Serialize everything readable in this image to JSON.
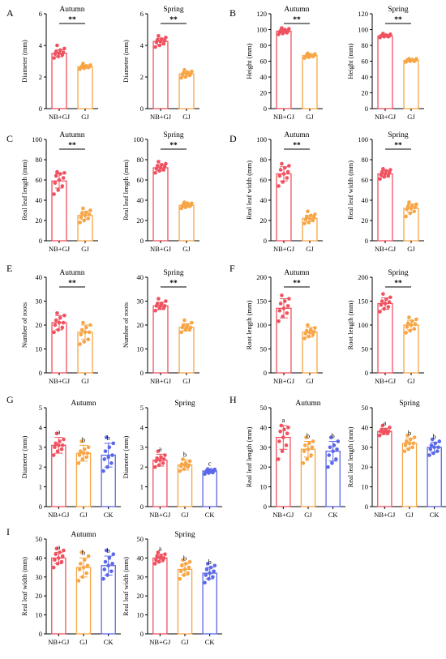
{
  "colors": {
    "NB+GJ": "#f0515f",
    "GJ": "#f7a545",
    "CK": "#5b68e8",
    "axis": "#000000"
  },
  "chart_data": [
    {
      "panel": "A",
      "type": "bar",
      "title": "Autumn",
      "ylabel": "Diameter (mm)",
      "categories": [
        "NB+GJ",
        "GJ"
      ],
      "values": [
        3.5,
        2.65
      ],
      "errors": [
        0.22,
        0.1
      ],
      "yticks": [
        0,
        2,
        4,
        6
      ],
      "ylim": [
        0,
        6
      ],
      "annotation": "**",
      "points": [
        [
          3.2,
          3.3,
          3.4,
          3.45,
          3.5,
          3.55,
          3.6,
          3.7,
          3.8,
          4.0
        ],
        [
          2.5,
          2.55,
          2.6,
          2.6,
          2.65,
          2.65,
          2.7,
          2.7,
          2.75,
          2.85
        ]
      ]
    },
    {
      "panel": "A",
      "type": "bar",
      "title": "Spring",
      "ylabel": "Diameter (mm)",
      "categories": [
        "NB+GJ",
        "GJ"
      ],
      "values": [
        4.25,
        2.2
      ],
      "errors": [
        0.2,
        0.15
      ],
      "yticks": [
        0,
        2,
        4,
        6
      ],
      "ylim": [
        0,
        6
      ],
      "annotation": "**",
      "points": [
        [
          3.9,
          4.0,
          4.1,
          4.2,
          4.25,
          4.3,
          4.35,
          4.4,
          4.5,
          4.6
        ],
        [
          1.95,
          2.0,
          2.1,
          2.15,
          2.2,
          2.2,
          2.25,
          2.3,
          2.35,
          2.45
        ]
      ]
    },
    {
      "panel": "B",
      "type": "bar",
      "title": "Autumn",
      "ylabel": "Height (mm)",
      "categories": [
        "NB+GJ",
        "GJ"
      ],
      "values": [
        98,
        67
      ],
      "errors": [
        2.5,
        2
      ],
      "yticks": [
        0,
        20,
        40,
        60,
        80,
        100,
        120
      ],
      "ylim": [
        0,
        120
      ],
      "annotation": "**",
      "points": [
        [
          94,
          95,
          96,
          97,
          98,
          98,
          99,
          100,
          101,
          102
        ],
        [
          64,
          65,
          66,
          66,
          67,
          67,
          68,
          68,
          69,
          70
        ]
      ]
    },
    {
      "panel": "B",
      "type": "bar",
      "title": "Spring",
      "ylabel": "Height (mm)",
      "categories": [
        "NB+GJ",
        "GJ"
      ],
      "values": [
        92,
        61
      ],
      "errors": [
        1.5,
        1
      ],
      "yticks": [
        0,
        20,
        40,
        60,
        80,
        100,
        120
      ],
      "ylim": [
        0,
        120
      ],
      "annotation": "**",
      "points": [
        [
          90,
          91,
          91,
          92,
          92,
          92,
          93,
          93,
          94,
          95
        ],
        [
          59,
          60,
          60,
          61,
          61,
          61,
          62,
          62,
          63,
          63
        ]
      ]
    },
    {
      "panel": "C",
      "type": "bar",
      "title": "Autumn",
      "ylabel": "Real leaf length (mm)",
      "categories": [
        "NB+GJ",
        "GJ"
      ],
      "values": [
        59,
        25
      ],
      "errors": [
        7,
        4
      ],
      "yticks": [
        0,
        20,
        40,
        60,
        80,
        100
      ],
      "ylim": [
        0,
        100
      ],
      "annotation": "**",
      "points": [
        [
          46,
          50,
          54,
          57,
          60,
          62,
          64,
          66,
          67,
          68
        ],
        [
          18,
          20,
          22,
          23,
          25,
          26,
          27,
          28,
          30,
          32
        ]
      ]
    },
    {
      "panel": "C",
      "type": "bar",
      "title": "Spring",
      "ylabel": "Real leaf length (mm)",
      "categories": [
        "NB+GJ",
        "GJ"
      ],
      "values": [
        72,
        35
      ],
      "errors": [
        3,
        2
      ],
      "yticks": [
        0,
        20,
        40,
        60,
        80,
        100
      ],
      "ylim": [
        0,
        100
      ],
      "annotation": "**",
      "points": [
        [
          67,
          69,
          70,
          71,
          72,
          73,
          74,
          75,
          76,
          78
        ],
        [
          32,
          33,
          34,
          34,
          35,
          35,
          36,
          37,
          37,
          38
        ]
      ]
    },
    {
      "panel": "D",
      "type": "bar",
      "title": "Autumn",
      "ylabel": "Real leaf width (mm)",
      "categories": [
        "NB+GJ",
        "GJ"
      ],
      "values": [
        66,
        22
      ],
      "errors": [
        7,
        3
      ],
      "yticks": [
        0,
        20,
        40,
        60,
        80,
        100
      ],
      "ylim": [
        0,
        100
      ],
      "annotation": "**",
      "points": [
        [
          54,
          58,
          62,
          64,
          66,
          68,
          70,
          72,
          74,
          76
        ],
        [
          17,
          18,
          20,
          21,
          22,
          23,
          24,
          25,
          26,
          29
        ]
      ]
    },
    {
      "panel": "D",
      "type": "bar",
      "title": "Spring",
      "ylabel": "Real leaf width (mm)",
      "categories": [
        "NB+GJ",
        "GJ"
      ],
      "values": [
        66,
        32
      ],
      "errors": [
        3,
        4
      ],
      "yticks": [
        0,
        20,
        40,
        60,
        80,
        100
      ],
      "ylim": [
        0,
        100
      ],
      "annotation": "**",
      "points": [
        [
          61,
          63,
          64,
          65,
          66,
          67,
          68,
          69,
          70,
          71
        ],
        [
          24,
          27,
          29,
          31,
          32,
          33,
          34,
          35,
          36,
          38
        ]
      ]
    },
    {
      "panel": "E",
      "type": "bar",
      "title": "Autumn",
      "ylabel": "Number of roots",
      "categories": [
        "NB+GJ",
        "GJ"
      ],
      "values": [
        21,
        17
      ],
      "errors": [
        3,
        3
      ],
      "yticks": [
        0,
        10,
        20,
        30,
        40
      ],
      "ylim": [
        0,
        40
      ],
      "annotation": "**",
      "points": [
        [
          17,
          18,
          19,
          20,
          21,
          21,
          22,
          23,
          24,
          25
        ],
        [
          12,
          13,
          14,
          16,
          17,
          17,
          18,
          19,
          20,
          21
        ]
      ]
    },
    {
      "panel": "E",
      "type": "bar",
      "title": "Spring",
      "ylabel": "Number of roots",
      "categories": [
        "NB+GJ",
        "GJ"
      ],
      "values": [
        28,
        19
      ],
      "errors": [
        1.5,
        1.5
      ],
      "yticks": [
        0,
        10,
        20,
        30,
        40
      ],
      "ylim": [
        0,
        40
      ],
      "annotation": "**",
      "points": [
        [
          26,
          27,
          27,
          28,
          28,
          28,
          29,
          29,
          30,
          31
        ],
        [
          17,
          18,
          18,
          19,
          19,
          19,
          20,
          20,
          21,
          22
        ]
      ]
    },
    {
      "panel": "F",
      "type": "bar",
      "title": "Autumn",
      "ylabel": "Root length (mm)",
      "categories": [
        "NB+GJ",
        "GJ"
      ],
      "values": [
        135,
        85
      ],
      "errors": [
        20,
        10
      ],
      "yticks": [
        0,
        50,
        100,
        150,
        200
      ],
      "ylim": [
        0,
        200
      ],
      "annotation": "**",
      "points": [
        [
          108,
          118,
          125,
          130,
          135,
          140,
          145,
          150,
          155,
          162
        ],
        [
          72,
          76,
          80,
          82,
          85,
          86,
          88,
          90,
          94,
          100
        ]
      ]
    },
    {
      "panel": "F",
      "type": "bar",
      "title": "Spring",
      "ylabel": "Root length (mm)",
      "categories": [
        "NB+GJ",
        "GJ"
      ],
      "values": [
        145,
        100
      ],
      "errors": [
        12,
        10
      ],
      "yticks": [
        0,
        50,
        100,
        150,
        200
      ],
      "ylim": [
        0,
        200
      ],
      "annotation": "**",
      "points": [
        [
          128,
          134,
          138,
          142,
          145,
          148,
          150,
          154,
          158,
          165
        ],
        [
          84,
          88,
          92,
          96,
          100,
          102,
          104,
          108,
          112,
          116
        ]
      ]
    },
    {
      "panel": "G",
      "type": "bar",
      "title": "Autumn",
      "ylabel": "Diameter (mm)",
      "categories": [
        "NB+GJ",
        "GJ",
        "CK"
      ],
      "values": [
        3.1,
        2.7,
        2.6
      ],
      "errors": [
        0.4,
        0.4,
        0.6
      ],
      "yticks": [
        0,
        1,
        2,
        3,
        4,
        5
      ],
      "ylim": [
        0,
        5
      ],
      "letters": [
        "a",
        "b",
        "b"
      ],
      "points": [
        [
          2.6,
          2.8,
          2.9,
          3.0,
          3.1,
          3.1,
          3.2,
          3.3,
          3.4,
          3.7
        ],
        [
          2.2,
          2.4,
          2.5,
          2.6,
          2.7,
          2.7,
          2.8,
          2.9,
          3.0,
          3.3
        ],
        [
          1.8,
          2.0,
          2.2,
          2.4,
          2.5,
          2.6,
          2.8,
          3.0,
          3.2,
          3.5
        ]
      ]
    },
    {
      "panel": "G",
      "type": "bar",
      "title": "Spring",
      "ylabel": "Diameter (mm)",
      "categories": [
        "NB+GJ",
        "GJ",
        "CK"
      ],
      "values": [
        2.35,
        2.1,
        1.8
      ],
      "errors": [
        0.3,
        0.25,
        0.1
      ],
      "yticks": [
        0,
        1,
        2,
        3,
        4,
        5
      ],
      "ylim": [
        0,
        5
      ],
      "letters": [
        "a",
        "b",
        "c"
      ],
      "points": [
        [
          2.0,
          2.1,
          2.2,
          2.3,
          2.35,
          2.4,
          2.45,
          2.5,
          2.6,
          2.8
        ],
        [
          1.8,
          1.9,
          2.0,
          2.05,
          2.1,
          2.1,
          2.15,
          2.2,
          2.3,
          2.4
        ],
        [
          1.65,
          1.7,
          1.72,
          1.75,
          1.8,
          1.8,
          1.82,
          1.85,
          1.88,
          1.9
        ]
      ]
    },
    {
      "panel": "H",
      "type": "bar",
      "title": "Autumn",
      "ylabel": "Real leaf length (mm)",
      "categories": [
        "NB+GJ",
        "GJ",
        "CK"
      ],
      "values": [
        35,
        29,
        28
      ],
      "errors": [
        6,
        4,
        5
      ],
      "yticks": [
        0,
        10,
        20,
        30,
        40,
        50
      ],
      "ylim": [
        0,
        50
      ],
      "letters": [
        "a",
        "b",
        "b"
      ],
      "points": [
        [
          24,
          28,
          31,
          33,
          35,
          37,
          38,
          39,
          40,
          41
        ],
        [
          22,
          24,
          26,
          28,
          29,
          30,
          31,
          32,
          33,
          35
        ],
        [
          20,
          22,
          24,
          26,
          28,
          29,
          30,
          31,
          33,
          35
        ]
      ]
    },
    {
      "panel": "H",
      "type": "bar",
      "title": "Spring",
      "ylabel": "Real leaf length (mm)",
      "categories": [
        "NB+GJ",
        "GJ",
        "CK"
      ],
      "values": [
        38,
        32,
        30
      ],
      "errors": [
        1.5,
        2.5,
        2.5
      ],
      "yticks": [
        0,
        10,
        20,
        30,
        40,
        50
      ],
      "ylim": [
        0,
        50
      ],
      "letters": [
        "a",
        "b",
        "b"
      ],
      "points": [
        [
          36,
          37,
          37,
          38,
          38,
          38,
          39,
          39,
          40,
          41
        ],
        [
          28,
          29,
          30,
          31,
          32,
          32,
          33,
          34,
          35,
          36
        ],
        [
          26,
          27,
          28,
          29,
          30,
          30,
          31,
          32,
          33,
          34
        ]
      ]
    },
    {
      "panel": "I",
      "type": "bar",
      "title": "Autumn",
      "ylabel": "Real leaf width (mm)",
      "categories": [
        "NB+GJ",
        "GJ",
        "CK"
      ],
      "values": [
        40,
        35,
        36
      ],
      "errors": [
        3,
        5,
        5
      ],
      "yticks": [
        0,
        10,
        20,
        30,
        40,
        50
      ],
      "ylim": [
        0,
        50
      ],
      "letters": [
        "a",
        "b",
        "b"
      ],
      "points": [
        [
          35,
          37,
          38,
          39,
          40,
          41,
          42,
          43,
          44,
          45
        ],
        [
          28,
          30,
          32,
          34,
          35,
          36,
          37,
          39,
          41,
          43
        ],
        [
          29,
          31,
          33,
          34,
          36,
          37,
          38,
          40,
          42,
          44
        ]
      ]
    },
    {
      "panel": "I",
      "type": "bar",
      "title": "Spring",
      "ylabel": "Real leaf width (mm)",
      "categories": [
        "NB+GJ",
        "GJ",
        "CK"
      ],
      "values": [
        40,
        34,
        32
      ],
      "errors": [
        2,
        3,
        3
      ],
      "yticks": [
        0,
        10,
        20,
        30,
        40,
        50
      ],
      "ylim": [
        0,
        50
      ],
      "letters": [
        "a",
        "b",
        "b"
      ],
      "points": [
        [
          37,
          38,
          39,
          39,
          40,
          40,
          41,
          41,
          42,
          43
        ],
        [
          29,
          31,
          32,
          33,
          34,
          35,
          36,
          37,
          38,
          39
        ],
        [
          27,
          29,
          30,
          31,
          32,
          33,
          34,
          35,
          36,
          37
        ]
      ]
    }
  ]
}
